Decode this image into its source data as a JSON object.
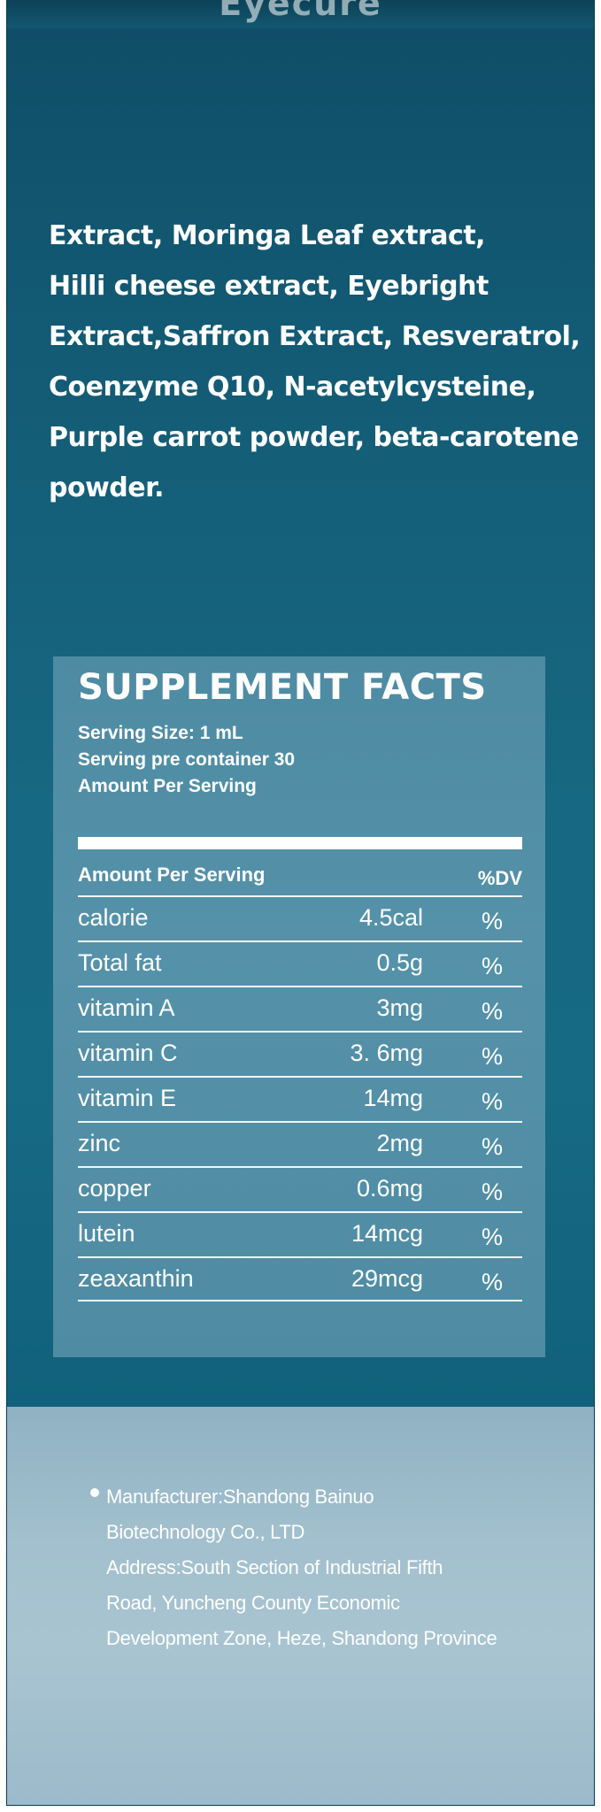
{
  "header": {
    "logo_text": "Eyecure"
  },
  "ingredients": {
    "lines": [
      "Extract, Moringa Leaf extract,",
      "Hilli cheese  extract, Eyebright",
      "Extract,Saffron Extract, Resveratrol,",
      "Coenzyme Q10, N-acetylcysteine,",
      "Purple carrot powder, beta-carotene",
      "powder."
    ]
  },
  "supplement_facts": {
    "title": "SUPPLEMENT FACTS",
    "serving_size": "Serving Size: 1 mL",
    "servings_per_container": "Serving pre container 30",
    "amount_per_serving": "Amount Per Serving",
    "table_header_label": "Amount Per Serving",
    "table_header_dv": "%DV",
    "rows": [
      {
        "name": "calorie",
        "amount": "4.5cal",
        "dv": "%"
      },
      {
        "name": "Total fat",
        "amount": "0.5g",
        "dv": "%"
      },
      {
        "name": "vitamin A",
        "amount": "3mg",
        "dv": "%"
      },
      {
        "name": "vitamin C",
        "amount": "3. 6mg",
        "dv": "%"
      },
      {
        "name": "vitamin E",
        "amount": "14mg",
        "dv": "%"
      },
      {
        "name": "zinc",
        "amount": "2mg",
        "dv": "%"
      },
      {
        "name": "copper",
        "amount": "0.6mg",
        "dv": "%"
      },
      {
        "name": "lutein",
        "amount": "14mcg",
        "dv": "%"
      },
      {
        "name": "zeaxanthin",
        "amount": "29mcg",
        "dv": "%"
      }
    ]
  },
  "manufacturer": {
    "lines": [
      "Manufacturer:Shandong Bainuo",
      "Biotechnology Co., LTD",
      "Address:South Section of Industrial Fifth",
      "Road, Yuncheng County Economic",
      "Development Zone, Heze, Shandong Province"
    ]
  },
  "colors": {
    "box_blue": "#176882",
    "panel_blue": "#5592aa",
    "bottom_light": "#a9c4d1",
    "text": "#ffffff"
  }
}
